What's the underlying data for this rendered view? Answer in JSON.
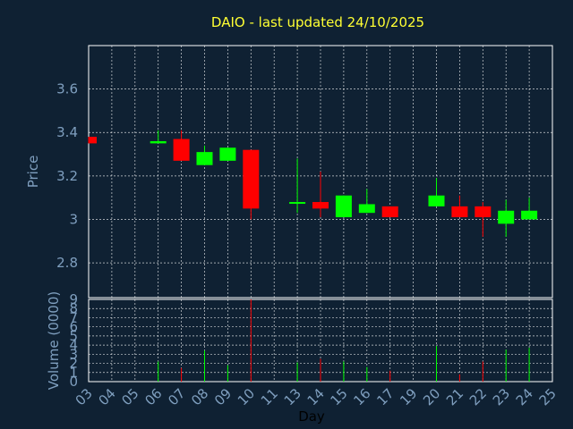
{
  "chart_data": {
    "type": "candlestick",
    "title": "DAIO - last updated 24/10/2025",
    "xlabel": "Day",
    "price_ylabel": "Price",
    "volume_ylabel": "Volume (0000)",
    "x_ticks": [
      "03",
      "04",
      "05",
      "06",
      "07",
      "08",
      "09",
      "10",
      "11",
      "13",
      "14",
      "15",
      "16",
      "17",
      "19",
      "20",
      "21",
      "22",
      "23",
      "24",
      "25"
    ],
    "price_ylim": [
      2.64,
      3.8
    ],
    "price_ticks": [
      "2.8",
      "3",
      "3.2",
      "3.4",
      "3.6"
    ],
    "volume_ylim": [
      0,
      9
    ],
    "volume_ticks": [
      "0",
      "1",
      "2",
      "3",
      "4",
      "5",
      "6",
      "7",
      "8",
      "9"
    ],
    "colors": {
      "up": "#00ff00",
      "down": "#ff0000",
      "grid": "#ffffff",
      "background": "#0f2133",
      "title": "#ffff33"
    },
    "candles": [
      {
        "day": "03",
        "open": 3.38,
        "close": 3.35,
        "high": 3.38,
        "low": 3.35,
        "volume": 0
      },
      {
        "day": "06",
        "open": 3.35,
        "close": 3.36,
        "high": 3.41,
        "low": 3.35,
        "volume": 2.2
      },
      {
        "day": "07",
        "open": 3.37,
        "close": 3.27,
        "high": 3.41,
        "low": 3.27,
        "volume": 1.5
      },
      {
        "day": "08",
        "open": 3.25,
        "close": 3.31,
        "high": 3.34,
        "low": 3.25,
        "volume": 3.4
      },
      {
        "day": "09",
        "open": 3.27,
        "close": 3.33,
        "high": 3.33,
        "low": 3.27,
        "volume": 1.8
      },
      {
        "day": "10",
        "open": 3.32,
        "close": 3.05,
        "high": 3.32,
        "low": 3.0,
        "volume": 9.0
      },
      {
        "day": "13",
        "open": 3.08,
        "close": 3.08,
        "high": 3.28,
        "low": 3.03,
        "volume": 2.1
      },
      {
        "day": "14",
        "open": 3.08,
        "close": 3.05,
        "high": 3.22,
        "low": 3.01,
        "volume": 2.5
      },
      {
        "day": "15",
        "open": 3.01,
        "close": 3.11,
        "high": 3.11,
        "low": 3.01,
        "volume": 2.2
      },
      {
        "day": "16",
        "open": 3.03,
        "close": 3.07,
        "high": 3.14,
        "low": 3.03,
        "volume": 1.6
      },
      {
        "day": "17",
        "open": 3.06,
        "close": 3.01,
        "high": 3.06,
        "low": 3.01,
        "volume": 1.2
      },
      {
        "day": "20",
        "open": 3.06,
        "close": 3.11,
        "high": 3.19,
        "low": 3.06,
        "volume": 3.9
      },
      {
        "day": "21",
        "open": 3.06,
        "close": 3.01,
        "high": 3.11,
        "low": 3.01,
        "volume": 0.8
      },
      {
        "day": "22",
        "open": 3.06,
        "close": 3.01,
        "high": 3.08,
        "low": 2.92,
        "volume": 2.2
      },
      {
        "day": "23",
        "open": 2.98,
        "close": 3.04,
        "high": 3.09,
        "low": 2.92,
        "volume": 3.5
      },
      {
        "day": "24",
        "open": 3.0,
        "close": 3.04,
        "high": 3.1,
        "low": 3.0,
        "volume": 3.7
      }
    ]
  }
}
